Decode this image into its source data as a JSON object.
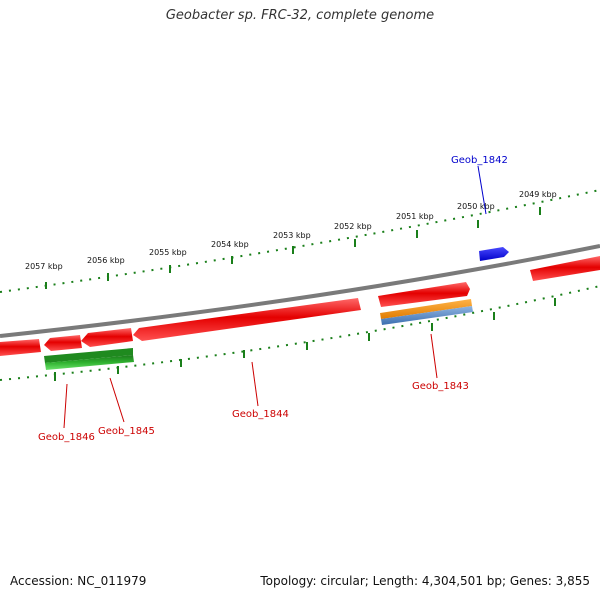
{
  "title": "Geobacter sp. FRC-32, complete genome",
  "footer": {
    "accession": "Accession: NC_011979",
    "topology": "Topology: circular; Length: 4,304,501 bp; Genes: 3,855"
  },
  "colors": {
    "backbone": "#808080",
    "forward_gene": "#e00000",
    "reverse_gene": "#e00000",
    "rna_green": "#2ea82e",
    "cds_orange": "#f0900a",
    "cds_blue": "#4f86c6",
    "highlight_blue": "#0000ee",
    "tick_green": "#1a7f1a",
    "label_red": "#cc0000",
    "label_blue": "#0000cc"
  },
  "scale_labels": [
    "2057 kbp",
    "2056 kbp",
    "2055 kbp",
    "2054 kbp",
    "2053 kbp",
    "2052 kbp",
    "2051 kbp",
    "2050 kbp",
    "2049 kbp"
  ],
  "gene_labels": [
    {
      "id": "geob-1842",
      "text": "Geob_1842",
      "color": "blue"
    },
    {
      "id": "geob-1843",
      "text": "Geob_1843",
      "color": "red"
    },
    {
      "id": "geob-1844",
      "text": "Geob_1844",
      "color": "red"
    },
    {
      "id": "geob-1845",
      "text": "Geob_1845",
      "color": "red"
    },
    {
      "id": "geob-1846",
      "text": "Geob_1846",
      "color": "red"
    }
  ]
}
